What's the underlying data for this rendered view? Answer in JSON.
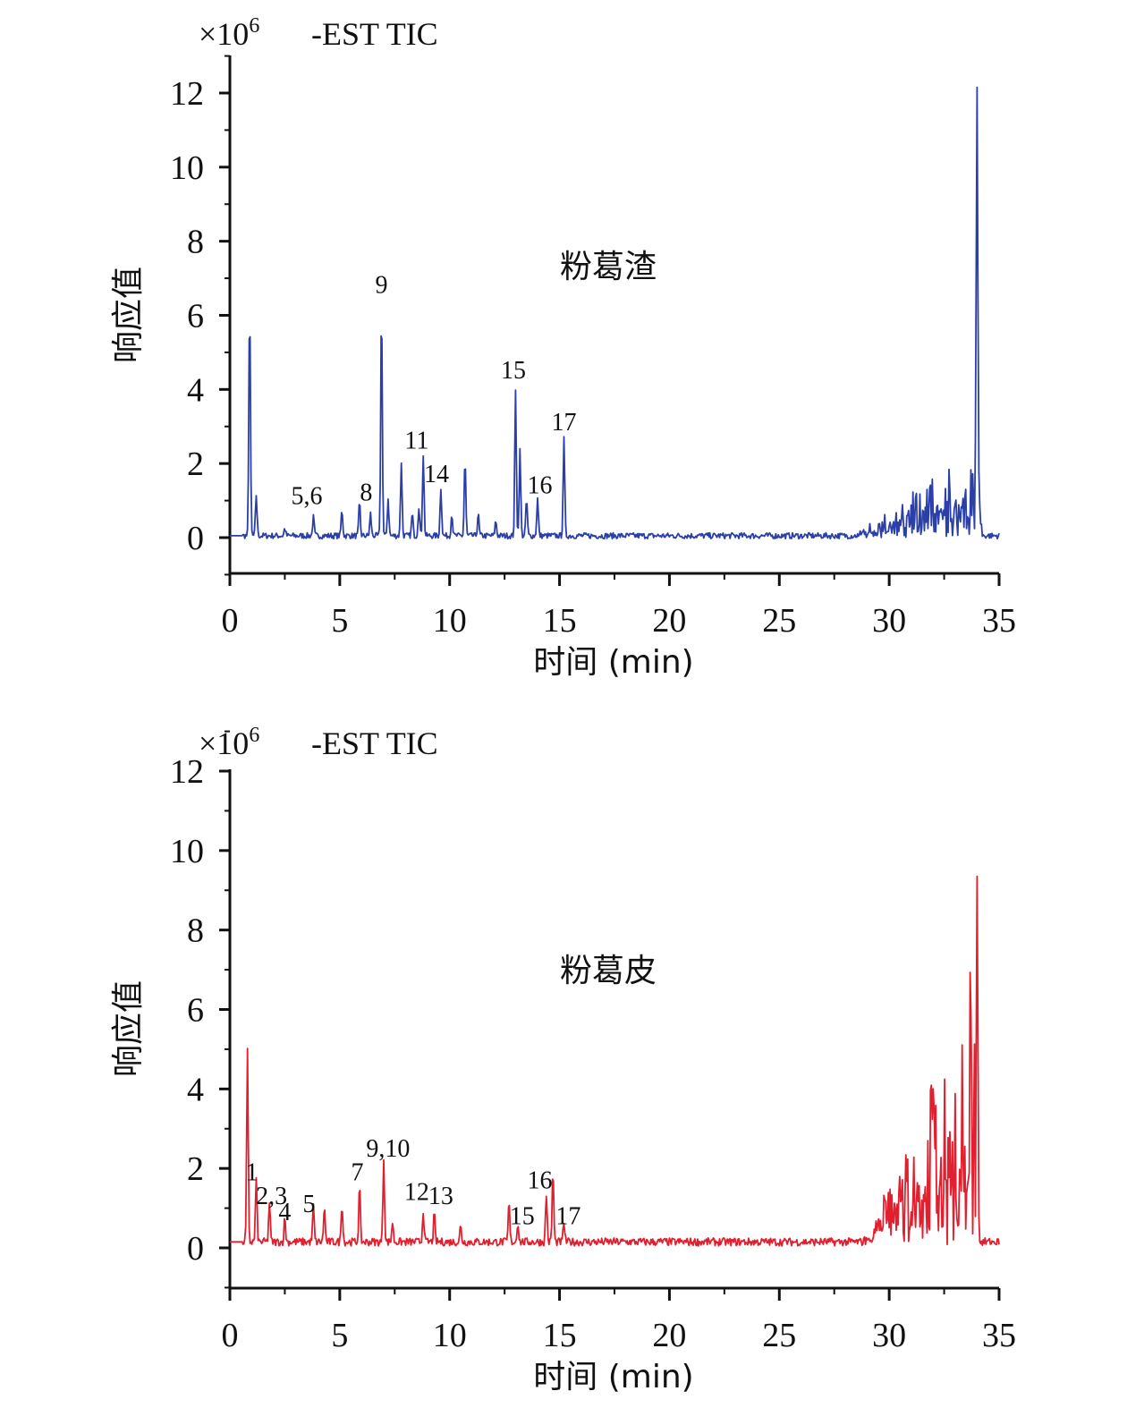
{
  "chart_data": [
    {
      "type": "line",
      "title": "粉葛渣",
      "header_scale": "×10",
      "header_exp": "6",
      "header_label": "-EST TIC",
      "xlabel": "时间 (min)",
      "ylabel": "响应值",
      "xlim": [
        0,
        35
      ],
      "ylim": [
        -1,
        13
      ],
      "x_ticks": [
        "0",
        "5",
        "10",
        "15",
        "20",
        "25",
        "30",
        "35"
      ],
      "y_ticks": [
        "0",
        "2",
        "4",
        "6",
        "8",
        "10",
        "12"
      ],
      "color": "#2a3fa8",
      "accent": "#3a6fe0",
      "baseline": 0.05,
      "noise": 0.08,
      "rising_region": {
        "start": 28.5,
        "end": 34.2,
        "max": 2.0
      },
      "peaks": [
        [
          0.9,
          6.3
        ],
        [
          1.2,
          1.1
        ],
        [
          2.5,
          0.2
        ],
        [
          3.8,
          0.5
        ],
        [
          5.1,
          0.7
        ],
        [
          5.9,
          0.9
        ],
        [
          6.4,
          0.6
        ],
        [
          6.9,
          6.3
        ],
        [
          7.2,
          1.0
        ],
        [
          7.8,
          2.0
        ],
        [
          8.3,
          0.6
        ],
        [
          8.6,
          0.8
        ],
        [
          8.8,
          2.2
        ],
        [
          9.6,
          1.3
        ],
        [
          10.1,
          0.6
        ],
        [
          10.7,
          2.1
        ],
        [
          11.3,
          0.6
        ],
        [
          12.1,
          0.4
        ],
        [
          13.0,
          3.9
        ],
        [
          13.2,
          2.3
        ],
        [
          13.5,
          1.0
        ],
        [
          14.0,
          1.0
        ],
        [
          15.2,
          2.6
        ],
        [
          34.0,
          10.7
        ]
      ],
      "annotations": [
        {
          "text": "5,6",
          "x": 3.5,
          "y": 0.9
        },
        {
          "text": "8",
          "x": 6.2,
          "y": 1.0
        },
        {
          "text": "9",
          "x": 6.9,
          "y": 6.6
        },
        {
          "text": "11",
          "x": 8.5,
          "y": 2.4
        },
        {
          "text": "14",
          "x": 9.4,
          "y": 1.5
        },
        {
          "text": "15",
          "x": 12.9,
          "y": 4.3
        },
        {
          "text": "16",
          "x": 14.1,
          "y": 1.2
        },
        {
          "text": "17",
          "x": 15.2,
          "y": 2.9
        }
      ]
    },
    {
      "type": "line",
      "title": "粉葛皮",
      "header_scale": "×10",
      "header_exp": "6",
      "header_label": "-EST TIC",
      "xlabel": "时间 (min)",
      "ylabel": "响应值",
      "xlim": [
        0,
        35
      ],
      "ylim": [
        -1,
        12.5
      ],
      "x_ticks": [
        "0",
        "5",
        "10",
        "15",
        "20",
        "25",
        "30",
        "35"
      ],
      "y_ticks": [
        "0",
        "2",
        "4",
        "6",
        "8",
        "10",
        "12"
      ],
      "color": "#e0202e",
      "accent": "#8a2050",
      "baseline": 0.15,
      "noise": 0.1,
      "rising_region": {
        "start": 28.8,
        "end": 33.9,
        "max": 5.0
      },
      "peaks": [
        [
          0.8,
          4.8
        ],
        [
          1.2,
          1.6
        ],
        [
          1.8,
          1.0
        ],
        [
          2.5,
          0.6
        ],
        [
          3.8,
          0.9
        ],
        [
          4.3,
          0.9
        ],
        [
          5.1,
          1.0
        ],
        [
          5.9,
          1.4
        ],
        [
          7.0,
          2.1
        ],
        [
          7.4,
          0.5
        ],
        [
          8.8,
          0.8
        ],
        [
          9.3,
          0.7
        ],
        [
          10.5,
          0.4
        ],
        [
          12.7,
          1.0
        ],
        [
          13.1,
          0.5
        ],
        [
          14.4,
          1.2
        ],
        [
          14.7,
          1.8
        ],
        [
          15.2,
          0.5
        ],
        [
          33.7,
          6.7
        ],
        [
          34.0,
          9.3
        ]
      ],
      "annotations": [
        {
          "text": "1",
          "x": 1.0,
          "y": 1.7
        },
        {
          "text": "2,3",
          "x": 1.9,
          "y": 1.1
        },
        {
          "text": "4",
          "x": 2.5,
          "y": 0.7
        },
        {
          "text": "5",
          "x": 3.6,
          "y": 0.9
        },
        {
          "text": "7",
          "x": 5.8,
          "y": 1.7
        },
        {
          "text": "9,10",
          "x": 7.2,
          "y": 2.3
        },
        {
          "text": "12",
          "x": 8.5,
          "y": 1.2
        },
        {
          "text": "13",
          "x": 9.6,
          "y": 1.1
        },
        {
          "text": "15",
          "x": 13.3,
          "y": 0.6
        },
        {
          "text": "16",
          "x": 14.1,
          "y": 1.5
        },
        {
          "text": "17",
          "x": 15.4,
          "y": 0.6
        }
      ]
    }
  ]
}
